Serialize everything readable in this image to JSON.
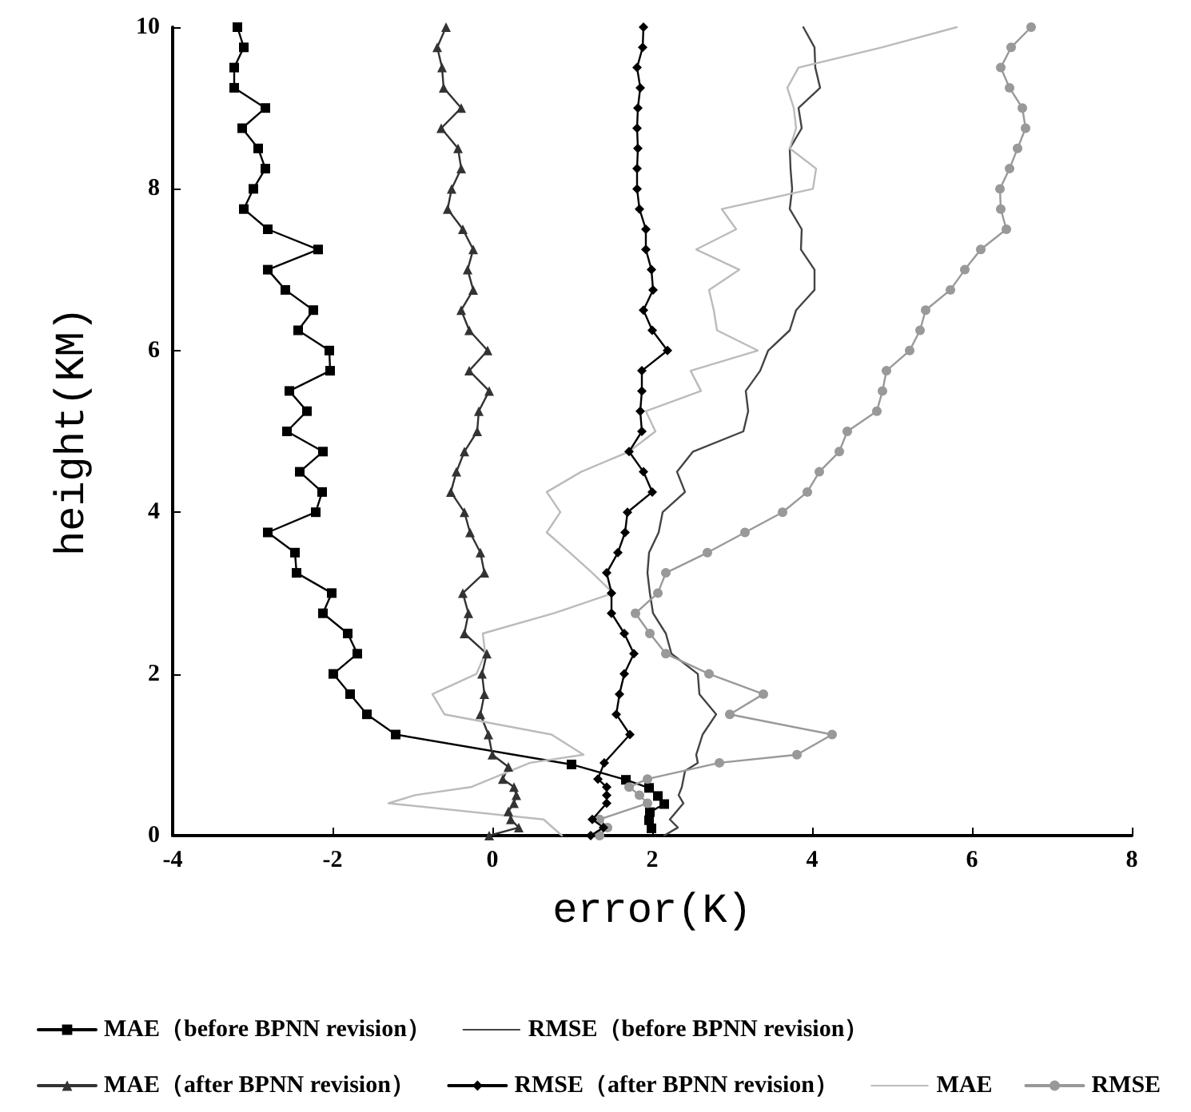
{
  "chart_data": {
    "type": "line",
    "xlabel": "error(K)",
    "ylabel": "height(KM)",
    "xlim": [
      -4,
      8
    ],
    "xticks": [
      -4,
      -2,
      0,
      2,
      4,
      6,
      8
    ],
    "ylim": [
      0,
      10
    ],
    "yticks": [
      0,
      2,
      4,
      6,
      8,
      10
    ],
    "grid": false,
    "legend": "bottom",
    "line_style": "solid",
    "series": [
      {
        "name": "MAE（before BPNN revision）",
        "color": "#000000",
        "marker": "square",
        "x": [
          -3.19,
          -3.11,
          -3.23,
          -3.23,
          -2.84,
          -3.13,
          -2.93,
          -2.84,
          -2.99,
          -3.11,
          -2.81,
          -2.18,
          -2.81,
          -2.59,
          -2.24,
          -2.43,
          -2.04,
          -2.03,
          -2.54,
          -2.32,
          -2.57,
          -2.12,
          -2.41,
          -2.13,
          -2.21,
          -2.81,
          -2.47,
          -2.45,
          -2.01,
          -2.12,
          -1.81,
          -1.69,
          -1.99,
          -1.78,
          -1.57,
          -1.21,
          0.99,
          1.67,
          1.96,
          2.07,
          2.15,
          1.97,
          1.96,
          1.99
        ],
        "values": [
          10,
          9.75,
          9.5,
          9.25,
          9,
          8.75,
          8.5,
          8.25,
          8,
          7.75,
          7.5,
          7.25,
          7,
          6.75,
          6.5,
          6.25,
          6,
          5.75,
          5.5,
          5.25,
          5,
          4.75,
          4.5,
          4.25,
          4,
          3.75,
          3.5,
          3.25,
          3,
          2.75,
          2.5,
          2.25,
          2,
          1.75,
          1.5,
          1.25,
          0.88,
          0.69,
          0.59,
          0.49,
          0.39,
          0.29,
          0.19,
          0.09
        ]
      },
      {
        "name": "RMSE（before BPNN revision）",
        "color": "#444444",
        "marker": "none",
        "x": [
          3.89,
          4.03,
          4.04,
          4.1,
          3.83,
          3.87,
          3.72,
          3.73,
          3.75,
          3.72,
          3.87,
          3.86,
          4.03,
          4.03,
          3.8,
          3.72,
          3.45,
          3.35,
          3.17,
          3.2,
          3.14,
          2.51,
          2.31,
          2.41,
          2.13,
          2.08,
          1.96,
          1.94,
          1.97,
          2.01,
          2.17,
          2.24,
          2.57,
          2.59,
          2.8,
          2.63,
          2.55,
          2.57,
          2.41,
          2.37,
          2.33,
          2.39,
          2.22,
          2.32,
          2.15
        ],
        "values": [
          10,
          9.75,
          9.5,
          9.25,
          9,
          8.75,
          8.5,
          8.25,
          8,
          7.75,
          7.5,
          7.25,
          7,
          6.75,
          6.5,
          6.25,
          6,
          5.75,
          5.5,
          5.25,
          5,
          4.75,
          4.5,
          4.25,
          4,
          3.75,
          3.5,
          3.25,
          3,
          2.75,
          2.5,
          2.25,
          2,
          1.75,
          1.5,
          1.25,
          1,
          0.9,
          0.8,
          0.6,
          0.5,
          0.4,
          0.2,
          0.1,
          0
        ]
      },
      {
        "name": "MAE（after BPNN revision）",
        "color": "#333333",
        "marker": "triangle",
        "x": [
          -0.58,
          -0.69,
          -0.63,
          -0.61,
          -0.39,
          -0.64,
          -0.43,
          -0.39,
          -0.51,
          -0.56,
          -0.37,
          -0.24,
          -0.31,
          -0.24,
          -0.39,
          -0.29,
          -0.06,
          -0.29,
          -0.04,
          -0.17,
          -0.19,
          -0.35,
          -0.45,
          -0.52,
          -0.35,
          -0.28,
          -0.15,
          -0.1,
          -0.37,
          -0.3,
          -0.35,
          -0.07,
          -0.13,
          -0.1,
          -0.15,
          -0.05,
          0,
          0.2,
          0.13,
          0.27,
          0.3,
          0.27,
          0.2,
          0.23,
          0.33,
          -0.04
        ],
        "values": [
          10,
          9.75,
          9.5,
          9.25,
          9,
          8.75,
          8.5,
          8.25,
          8,
          7.75,
          7.5,
          7.25,
          7,
          6.75,
          6.5,
          6.25,
          6,
          5.75,
          5.5,
          5.25,
          5,
          4.75,
          4.5,
          4.25,
          4,
          3.75,
          3.5,
          3.25,
          3,
          2.75,
          2.5,
          2.25,
          2,
          1.75,
          1.5,
          1.25,
          1,
          0.85,
          0.7,
          0.6,
          0.5,
          0.4,
          0.3,
          0.2,
          0.1,
          0
        ]
      },
      {
        "name": "RMSE（after BPNN revision）",
        "color": "#000000",
        "marker": "diamond",
        "x": [
          1.89,
          1.88,
          1.81,
          1.85,
          1.82,
          1.81,
          1.82,
          1.81,
          1.81,
          1.84,
          1.92,
          1.92,
          1.99,
          2.01,
          1.89,
          2,
          2.19,
          1.87,
          1.87,
          1.85,
          1.87,
          1.71,
          1.89,
          2,
          1.69,
          1.66,
          1.57,
          1.43,
          1.49,
          1.49,
          1.65,
          1.77,
          1.65,
          1.59,
          1.55,
          1.72,
          1.4,
          1.32,
          1.43,
          1.43,
          1.43,
          1.25,
          1.39,
          1.23
        ],
        "values": [
          10,
          9.75,
          9.5,
          9.25,
          9,
          8.75,
          8.5,
          8.25,
          8,
          7.75,
          7.5,
          7.25,
          7,
          6.75,
          6.5,
          6.25,
          6,
          5.75,
          5.5,
          5.25,
          5,
          4.75,
          4.5,
          4.25,
          4,
          3.75,
          3.5,
          3.25,
          3,
          2.75,
          2.5,
          2.25,
          2,
          1.75,
          1.5,
          1.25,
          0.9,
          0.7,
          0.6,
          0.5,
          0.4,
          0.2,
          0.1,
          0
        ]
      },
      {
        "name": "MAE",
        "color": "#bbbbbb",
        "marker": "none",
        "x": [
          5.81,
          4.87,
          3.83,
          3.69,
          3.77,
          3.8,
          3.72,
          4.05,
          4.01,
          2.87,
          3.05,
          2.55,
          3.09,
          2.71,
          2.77,
          2.81,
          3.32,
          2.48,
          2.61,
          1.92,
          2.04,
          1.71,
          1.11,
          0.68,
          0.85,
          0.68,
          0.97,
          1.25,
          1.51,
          0.77,
          -0.12,
          -0.09,
          -0.2,
          -0.75,
          -0.6,
          0.74,
          1.14,
          0.47,
          -0.27,
          -0.97,
          -1.3,
          0.64,
          0.87
        ],
        "values": [
          10,
          9.75,
          9.5,
          9.25,
          9,
          8.75,
          8.5,
          8.25,
          8,
          7.75,
          7.5,
          7.25,
          7,
          6.75,
          6.5,
          6.25,
          6,
          5.75,
          5.5,
          5.25,
          5,
          4.75,
          4.5,
          4.25,
          4,
          3.75,
          3.5,
          3.25,
          3,
          2.75,
          2.5,
          2.25,
          2,
          1.75,
          1.5,
          1.25,
          1,
          0.9,
          0.6,
          0.5,
          0.4,
          0.2,
          0
        ]
      },
      {
        "name": "RMSE",
        "color": "#999999",
        "marker": "circle",
        "x": [
          6.74,
          6.49,
          6.36,
          6.47,
          6.63,
          6.67,
          6.57,
          6.47,
          6.35,
          6.36,
          6.43,
          6.11,
          5.91,
          5.73,
          5.42,
          5.35,
          5.22,
          4.93,
          4.88,
          4.81,
          4.44,
          4.34,
          4.09,
          3.94,
          3.63,
          3.16,
          2.69,
          2.17,
          2.07,
          1.79,
          1.97,
          2.17,
          2.71,
          3.39,
          2.97,
          4.25,
          3.81,
          2.84,
          1.94,
          1.71,
          1.84,
          1.94,
          1.34,
          1.44,
          1.34
        ],
        "values": [
          10,
          9.75,
          9.5,
          9.25,
          9,
          8.75,
          8.5,
          8.25,
          8,
          7.75,
          7.5,
          7.25,
          7,
          6.75,
          6.5,
          6.25,
          6,
          5.75,
          5.5,
          5.25,
          5,
          4.75,
          4.5,
          4.25,
          4,
          3.75,
          3.5,
          3.25,
          3,
          2.75,
          2.5,
          2.25,
          2,
          1.75,
          1.5,
          1.25,
          1,
          0.9,
          0.7,
          0.6,
          0.5,
          0.4,
          0.2,
          0.1,
          0
        ]
      }
    ]
  }
}
